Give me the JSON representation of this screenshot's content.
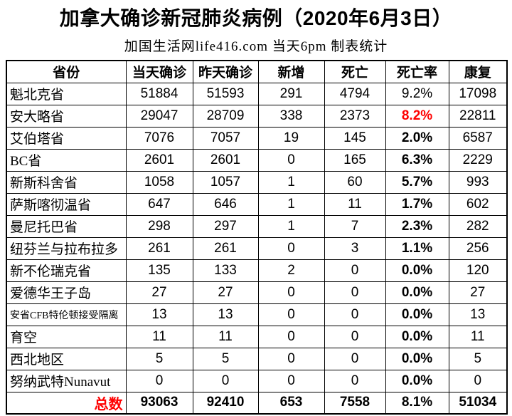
{
  "title": "加拿大确诊新冠肺炎病例（2020年6月3日）",
  "subtitle": "加国生活网life416.com 当天6pm 制表统计",
  "colors": {
    "accent_red": "#FF0000",
    "border": "#000000",
    "background": "#FFFFFF"
  },
  "table": {
    "headers": [
      "省份",
      "当天确诊",
      "昨天确诊",
      "新增",
      "死亡",
      "死亡率",
      "康复"
    ],
    "rows": [
      {
        "province": "魁北克省",
        "today": "51884",
        "yesterday": "51593",
        "new": "291",
        "deaths": "4794",
        "death_rate": "9.2%",
        "recovered": "17098",
        "rate_style": "normal"
      },
      {
        "province": "安大略省",
        "today": "29047",
        "yesterday": "28709",
        "new": "338",
        "deaths": "2373",
        "death_rate": "8.2%",
        "recovered": "22811",
        "rate_style": "red-bold"
      },
      {
        "province": "艾伯塔省",
        "today": "7076",
        "yesterday": "7057",
        "new": "19",
        "deaths": "145",
        "death_rate": "2.0%",
        "recovered": "6587",
        "rate_style": "bold"
      },
      {
        "province": "BC省",
        "today": "2601",
        "yesterday": "2601",
        "new": "0",
        "deaths": "165",
        "death_rate": "6.3%",
        "recovered": "2229",
        "rate_style": "bold"
      },
      {
        "province": "新斯科舍省",
        "today": "1058",
        "yesterday": "1057",
        "new": "1",
        "deaths": "60",
        "death_rate": "5.7%",
        "recovered": "993",
        "rate_style": "bold"
      },
      {
        "province": "萨斯喀彻温省",
        "today": "647",
        "yesterday": "646",
        "new": "1",
        "deaths": "11",
        "death_rate": "1.7%",
        "recovered": "602",
        "rate_style": "bold"
      },
      {
        "province": "曼尼托巴省",
        "today": "298",
        "yesterday": "297",
        "new": "1",
        "deaths": "7",
        "death_rate": "2.3%",
        "recovered": "282",
        "rate_style": "bold"
      },
      {
        "province": "纽芬兰与拉布拉多",
        "today": "261",
        "yesterday": "261",
        "new": "0",
        "deaths": "3",
        "death_rate": "1.1%",
        "recovered": "256",
        "rate_style": "bold"
      },
      {
        "province": "新不伦瑞克省",
        "today": "135",
        "yesterday": "133",
        "new": "2",
        "deaths": "0",
        "death_rate": "0.0%",
        "recovered": "120",
        "rate_style": "bold"
      },
      {
        "province": "爱德华王子岛",
        "today": "27",
        "yesterday": "27",
        "new": "0",
        "deaths": "0",
        "death_rate": "0.0%",
        "recovered": "27",
        "rate_style": "bold"
      },
      {
        "province": "安省CFB特伦顿接受隔离",
        "today": "13",
        "yesterday": "13",
        "new": "0",
        "deaths": "0",
        "death_rate": "0.0%",
        "recovered": "13",
        "rate_style": "bold",
        "small_name": true
      },
      {
        "province": "育空",
        "today": "11",
        "yesterday": "11",
        "new": "0",
        "deaths": "0",
        "death_rate": "0.0%",
        "recovered": "11",
        "rate_style": "bold"
      },
      {
        "province": "西北地区",
        "today": "5",
        "yesterday": "5",
        "new": "0",
        "deaths": "0",
        "death_rate": "0.0%",
        "recovered": "5",
        "rate_style": "bold"
      },
      {
        "province": "努纳武特Nunavut",
        "today": "0",
        "yesterday": "0",
        "new": "0",
        "deaths": "0",
        "death_rate": "0.0%",
        "recovered": "0",
        "rate_style": "bold"
      }
    ],
    "totals": {
      "label": "总数",
      "today": "93063",
      "yesterday": "92410",
      "new": "653",
      "deaths": "7558",
      "death_rate": "8.1%",
      "recovered": "51034"
    }
  }
}
